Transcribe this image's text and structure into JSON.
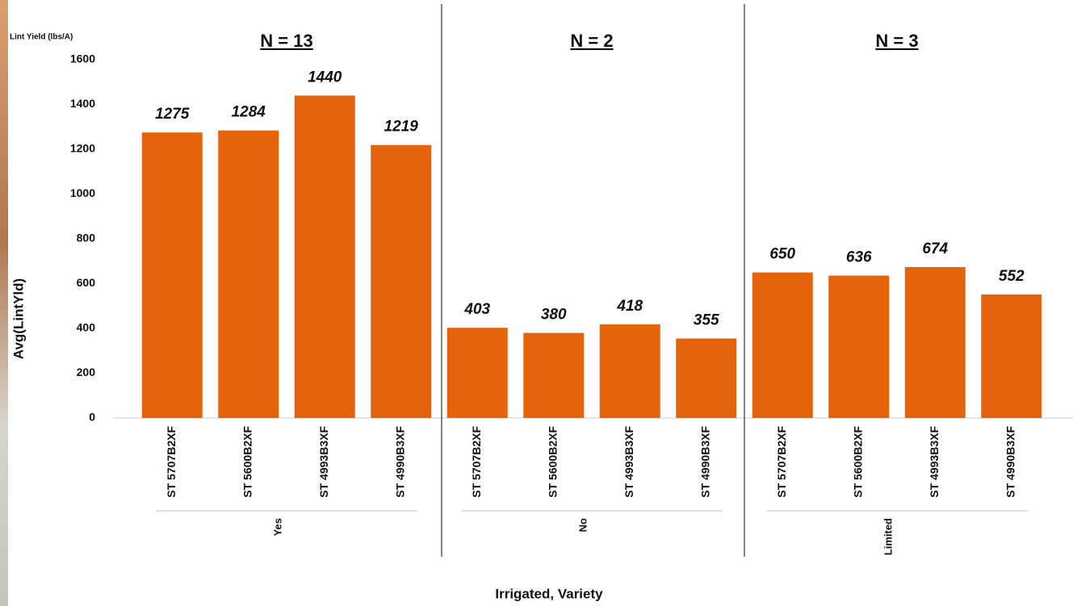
{
  "chart_data": {
    "type": "bar",
    "unit_label": "Lint Yield (lbs/A)",
    "y_axis_label": "Avg(LintYld)",
    "x_axis_label": "Irrigated, Variety",
    "color": "#e5640b",
    "ylim": [
      0,
      1600
    ],
    "yticks": [
      0,
      200,
      400,
      600,
      800,
      1000,
      1200,
      1400,
      1600
    ],
    "groups": [
      {
        "name": "Yes",
        "annotation": "N = 13",
        "categories": [
          "ST 5707B2XF",
          "ST 5600B2XF",
          "ST 4993B3XF",
          "ST 4990B3XF"
        ],
        "values": [
          1275,
          1284,
          1440,
          1219
        ]
      },
      {
        "name": "No",
        "annotation": "N = 2",
        "categories": [
          "ST 5707B2XF",
          "ST 5600B2XF",
          "ST 4993B3XF",
          "ST 4990B3XF"
        ],
        "values": [
          403,
          380,
          418,
          355
        ]
      },
      {
        "name": "Limited",
        "annotation": "N = 3",
        "categories": [
          "ST 5707B2XF",
          "ST 5600B2XF",
          "ST 4993B3XF",
          "ST 4990B3XF"
        ],
        "values": [
          650,
          636,
          674,
          552
        ]
      }
    ]
  }
}
